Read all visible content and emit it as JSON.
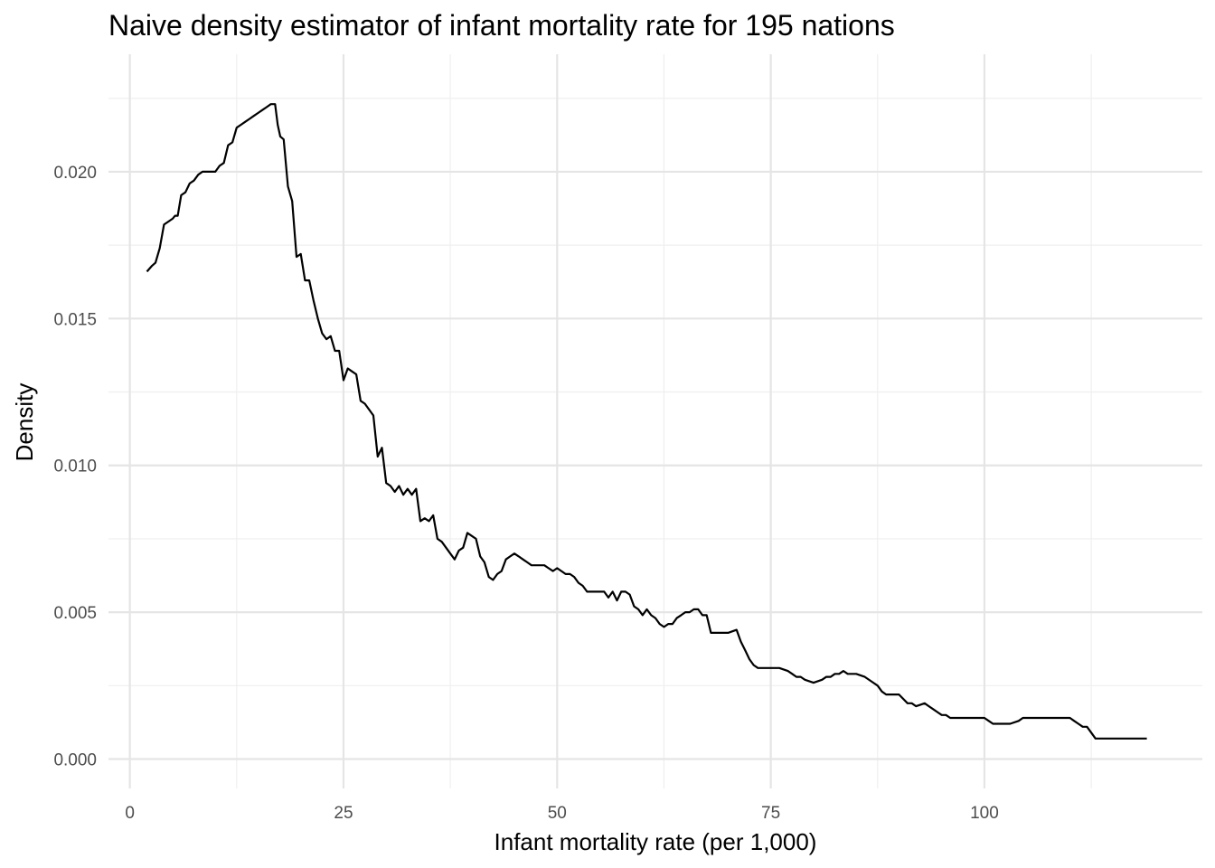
{
  "chart_data": {
    "type": "line",
    "title": "Naive density estimator of infant mortality rate for 195 nations",
    "xlabel": "Infant mortality rate (per 1,000)",
    "ylabel": "Density",
    "xlim": [
      -2.5,
      125.5
    ],
    "ylim": [
      -0.001,
      0.024
    ],
    "x_ticks": [
      0,
      25,
      50,
      75,
      100
    ],
    "x_tick_labels": [
      "0",
      "25",
      "50",
      "75",
      "100"
    ],
    "x_minor_ticks": [
      12.5,
      37.5,
      62.5,
      87.5,
      112.5
    ],
    "y_ticks": [
      0.0,
      0.005,
      0.01,
      0.015,
      0.02
    ],
    "y_tick_labels": [
      "0.000",
      "0.005",
      "0.010",
      "0.015",
      "0.020"
    ],
    "y_minor_ticks": [
      0.0025,
      0.0075,
      0.0125,
      0.0175,
      0.0225
    ],
    "grid": true,
    "legend": "none",
    "line_color": "#000000",
    "series": [
      {
        "x": [
          2.0,
          2.6,
          3.0,
          3.5,
          4.0,
          4.5,
          5.0,
          5.3,
          5.6,
          6.0,
          6.5,
          7.0,
          7.5,
          8.0,
          8.5,
          9.0,
          9.5,
          10.0,
          10.5,
          11.0,
          11.5,
          12.0,
          12.5,
          13.0,
          13.5,
          14.0,
          14.5,
          15.0,
          15.5,
          16.0,
          16.5,
          17.0,
          17.3,
          17.6,
          18.0,
          18.5,
          19.0,
          19.5,
          20.0,
          20.5,
          21.0,
          21.5,
          22.0,
          22.5,
          23.0,
          23.5,
          24.0,
          24.5,
          25.0,
          25.5,
          26.0,
          26.5,
          27.0,
          27.5,
          28.0,
          28.5,
          29.0,
          29.5,
          30.0,
          30.5,
          31.0,
          31.5,
          32.0,
          32.5,
          33.0,
          33.5,
          34.0,
          34.5,
          35.0,
          35.5,
          36.0,
          36.5,
          37.0,
          37.5,
          38.0,
          38.5,
          39.0,
          39.5,
          40.0,
          40.5,
          41.0,
          41.5,
          42.0,
          42.5,
          43.0,
          43.5,
          44.0,
          44.5,
          45.0,
          45.5,
          46.0,
          46.5,
          47.0,
          47.5,
          48.0,
          48.5,
          49.0,
          49.5,
          50.0,
          50.5,
          51.0,
          51.5,
          52.0,
          52.5,
          53.0,
          53.5,
          54.0,
          54.5,
          55.0,
          55.5,
          56.0,
          56.5,
          57.0,
          57.5,
          58.0,
          58.5,
          59.0,
          59.5,
          60.0,
          60.5,
          61.0,
          61.5,
          62.0,
          62.5,
          63.0,
          63.5,
          64.0,
          64.5,
          65.0,
          65.5,
          66.0,
          66.5,
          67.0,
          67.5,
          68.0,
          68.5,
          69.0,
          70.0,
          71.0,
          71.5,
          72.0,
          72.5,
          73.0,
          73.5,
          74.0,
          75.0,
          76.0,
          77.0,
          77.5,
          78.0,
          78.5,
          79.0,
          80.0,
          81.0,
          81.5,
          82.0,
          82.5,
          83.0,
          83.5,
          84.0,
          84.5,
          85.0,
          86.0,
          87.0,
          87.5,
          88.0,
          88.5,
          89.0,
          90.0,
          91.0,
          91.5,
          92.0,
          93.0,
          93.5,
          94.0,
          94.5,
          95.0,
          95.5,
          96.0,
          96.5,
          97.0,
          98.0,
          99.0,
          100.0,
          100.5,
          101.0,
          102.0,
          103.0,
          104.0,
          104.5,
          105.0,
          106.0,
          108.0,
          110.0,
          110.5,
          111.0,
          111.5,
          112.0,
          112.5,
          113.0,
          114.0,
          116.0,
          119.0
        ],
        "y": [
          0.0166,
          0.0168,
          0.0169,
          0.0174,
          0.0182,
          0.0183,
          0.0184,
          0.0185,
          0.0185,
          0.0192,
          0.0193,
          0.0196,
          0.0197,
          0.0199,
          0.02,
          0.02,
          0.02,
          0.02,
          0.0202,
          0.0203,
          0.0209,
          0.021,
          0.0215,
          0.0216,
          0.0217,
          0.0218,
          0.0219,
          0.022,
          0.0221,
          0.0222,
          0.0223,
          0.0223,
          0.0216,
          0.0212,
          0.0211,
          0.0195,
          0.019,
          0.0171,
          0.0172,
          0.0163,
          0.0163,
          0.0156,
          0.015,
          0.0145,
          0.0143,
          0.0144,
          0.0139,
          0.0139,
          0.0129,
          0.0133,
          0.0132,
          0.0131,
          0.0122,
          0.0121,
          0.0119,
          0.0117,
          0.0103,
          0.0106,
          0.0094,
          0.0093,
          0.0091,
          0.0093,
          0.009,
          0.0092,
          0.009,
          0.0092,
          0.0081,
          0.0082,
          0.0081,
          0.0083,
          0.0075,
          0.0074,
          0.0072,
          0.007,
          0.0068,
          0.0071,
          0.0072,
          0.0077,
          0.0076,
          0.0075,
          0.0069,
          0.0067,
          0.0062,
          0.0061,
          0.0063,
          0.0064,
          0.0068,
          0.0069,
          0.007,
          0.0069,
          0.0068,
          0.0067,
          0.0066,
          0.0066,
          0.0066,
          0.0066,
          0.0065,
          0.0064,
          0.0065,
          0.0064,
          0.0063,
          0.0063,
          0.0062,
          0.006,
          0.0059,
          0.0057,
          0.0057,
          0.0057,
          0.0057,
          0.0057,
          0.0055,
          0.0057,
          0.0054,
          0.0057,
          0.0057,
          0.0056,
          0.0052,
          0.0051,
          0.0049,
          0.0051,
          0.0049,
          0.0048,
          0.0046,
          0.0045,
          0.0046,
          0.0046,
          0.0048,
          0.0049,
          0.005,
          0.005,
          0.0051,
          0.0051,
          0.0049,
          0.0049,
          0.0043,
          0.0043,
          0.0043,
          0.0043,
          0.0044,
          0.004,
          0.0037,
          0.0034,
          0.0032,
          0.0031,
          0.0031,
          0.0031,
          0.0031,
          0.003,
          0.0029,
          0.0028,
          0.0028,
          0.0027,
          0.0026,
          0.0027,
          0.0028,
          0.0028,
          0.0029,
          0.0029,
          0.003,
          0.0029,
          0.0029,
          0.0029,
          0.0028,
          0.0026,
          0.0025,
          0.0023,
          0.0022,
          0.0022,
          0.0022,
          0.0019,
          0.0019,
          0.0018,
          0.0019,
          0.0018,
          0.0017,
          0.0016,
          0.0015,
          0.0015,
          0.0014,
          0.0014,
          0.0014,
          0.0014,
          0.0014,
          0.0014,
          0.0013,
          0.0012,
          0.0012,
          0.0012,
          0.0013,
          0.0014,
          0.0014,
          0.0014,
          0.0014,
          0.0014,
          0.0013,
          0.0012,
          0.0011,
          0.0011,
          0.0009,
          0.0007,
          0.0007,
          0.0007,
          0.0007
        ]
      }
    ]
  }
}
